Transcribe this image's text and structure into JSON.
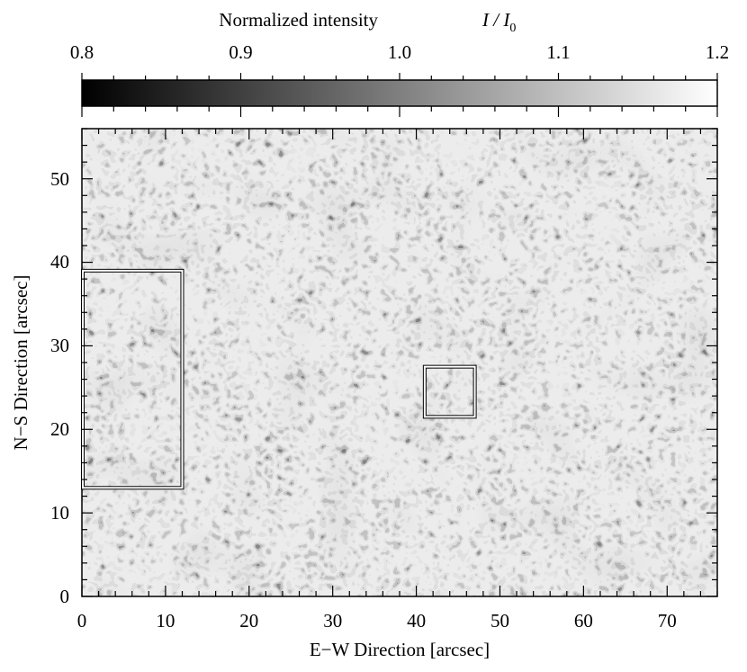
{
  "figure": {
    "colorbar": {
      "label": "Normalized intensity",
      "label_symbol": "I / I",
      "label_subscript": "0",
      "range": [
        0.8,
        1.2
      ],
      "ticks": [
        "0.8",
        "0.9",
        "1.0",
        "1.1",
        "1.2"
      ]
    },
    "x_axis": {
      "label": "E−W Direction   [arcsec]",
      "range": [
        0,
        76
      ],
      "ticks": [
        "0",
        "10",
        "20",
        "30",
        "40",
        "50",
        "60",
        "70"
      ]
    },
    "y_axis": {
      "label": "N−S Direction   [arcsec]",
      "range": [
        0,
        56
      ],
      "ticks": [
        "0",
        "10",
        "20",
        "30",
        "40",
        "50"
      ]
    },
    "regions": [
      {
        "name": "left-region",
        "x": [
          0,
          12
        ],
        "y": [
          13,
          39
        ]
      },
      {
        "name": "small-region",
        "x": [
          41,
          47
        ],
        "y": [
          21.5,
          27.5
        ]
      }
    ],
    "image_description_colors": {
      "background_gray": "#7e7e7e",
      "box_color": "#ffffff"
    }
  }
}
